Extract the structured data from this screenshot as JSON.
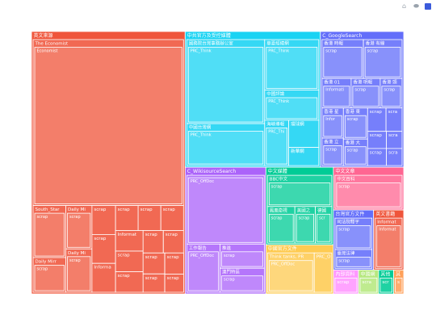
{
  "modebar": {
    "icons": [
      {
        "name": "camera-icon",
        "glyph": "⌂"
      },
      {
        "name": "zoom-icon",
        "glyph": "⬬"
      },
      {
        "name": "plotly-logo-icon",
        "glyph": ""
      }
    ]
  },
  "chart_data": {
    "type": "treemap",
    "title": "",
    "groups": [
      {
        "label": "英文來源",
        "color": "#ef553b",
        "children": [
          {
            "label": "The Economist",
            "value": 44,
            "children": [
              {
                "label": "Economist",
                "value": 44
              }
            ]
          },
          {
            "label": "South_Star",
            "value": 3,
            "children": [
              {
                "label": "scrap",
                "value": 3
              }
            ]
          },
          {
            "label": "Daily Mirror",
            "value": 2,
            "children": [
              {
                "label": "scrap",
                "value": 2
              }
            ]
          },
          {
            "label": "Daily Mirror",
            "value": 2,
            "children": [
              {
                "label": "scrap",
                "value": 2
              }
            ]
          },
          {
            "label": "Daily Mirror",
            "value": 2,
            "children": [
              {
                "label": "scrap",
                "value": 2
              }
            ]
          },
          {
            "label": "scrap",
            "value": 1.2
          },
          {
            "label": "scrap",
            "value": 1.2
          },
          {
            "label": "Informative",
            "value": 1.2
          },
          {
            "label": "scrap",
            "value": 1
          },
          {
            "label": "scrap",
            "value": 1
          },
          {
            "label": "scrap",
            "value": 1
          },
          {
            "label": "Informative",
            "value": 1
          },
          {
            "label": "scrap",
            "value": 1
          },
          {
            "label": "scrap",
            "value": 1
          },
          {
            "label": "scrap",
            "value": 0.8
          },
          {
            "label": "scrap",
            "value": 0.8
          },
          {
            "label": "scrap",
            "value": 0.8
          },
          {
            "label": "scrap",
            "value": 0.7
          },
          {
            "label": "scrap",
            "value": 0.7
          },
          {
            "label": "scrap",
            "value": 0.6
          }
        ]
      },
      {
        "label": "中共官方及受控媒體",
        "color": "#19d3f3",
        "children": [
          {
            "label": "國務院台灣事務辦公室",
            "value": 12,
            "children": [
              {
                "label": "PRC_Think",
                "value": 12
              }
            ]
          },
          {
            "label": "中國台灣網",
            "value": 6,
            "children": [
              {
                "label": "PRC_Think",
                "value": 6
              }
            ]
          },
          {
            "label": "華夏經緯網",
            "value": 5,
            "children": [
              {
                "label": "PRC_Think",
                "value": 5
              }
            ]
          },
          {
            "label": "中國評論",
            "value": 3,
            "children": [
              {
                "label": "PRC_Think",
                "value": 3
              }
            ]
          },
          {
            "label": "海峽導報",
            "value": 2,
            "children": [
              {
                "label": "PRC_Think",
                "value": 2
              }
            ]
          },
          {
            "label": "環球網",
            "value": 1.5
          },
          {
            "label": "新華網",
            "value": 1
          }
        ]
      },
      {
        "label": "C_GoogleSearch",
        "color": "#636efa",
        "children": [
          {
            "label": "香港 時報",
            "value": 3,
            "children": [
              {
                "label": "scrap",
                "value": 3
              }
            ]
          },
          {
            "label": "香港 有線",
            "value": 2.8,
            "children": [
              {
                "label": "scrap",
                "value": 2.8
              }
            ]
          },
          {
            "label": "香港 01",
            "value": 1.6,
            "children": [
              {
                "label": "Informative",
                "value": 1.6
              }
            ]
          },
          {
            "label": "香港 明報",
            "value": 1.6,
            "children": [
              {
                "label": "scrap",
                "value": 1.6
              }
            ]
          },
          {
            "label": "香港 頭條",
            "value": 1.2,
            "children": [
              {
                "label": "scrap",
                "value": 1.2
              }
            ]
          },
          {
            "label": "香港 星島",
            "value": 1.2,
            "children": [
              {
                "label": "Informative",
                "value": 1.2
              }
            ]
          },
          {
            "label": "香港 立場",
            "value": 1.1,
            "children": [
              {
                "label": "scrap",
                "value": 1.1
              }
            ]
          },
          {
            "label": "香港 東方",
            "value": 1.4,
            "children": [
              {
                "label": "scrap",
                "value": 1.4
              }
            ]
          },
          {
            "label": "香港 大公",
            "value": 1.2,
            "children": [
              {
                "label": "scrap",
                "value": 1.2
              }
            ]
          },
          {
            "label": "scrap",
            "value": 0.8
          },
          {
            "label": "scrap",
            "value": 0.7
          },
          {
            "label": "scrap",
            "value": 0.6
          },
          {
            "label": "scrap",
            "value": 0.6
          },
          {
            "label": "scrap",
            "value": 0.5
          },
          {
            "label": "scrap",
            "value": 0.5
          }
        ]
      },
      {
        "label": "C_WikisourceSearch",
        "color": "#ab63fa",
        "children": [
          {
            "label": "",
            "value": 10,
            "children": [
              {
                "label": "PRC_OffDoc",
                "value": 10
              }
            ]
          },
          {
            "label": "工作報告",
            "value": 3,
            "children": [
              {
                "label": "PRC_OffDoc",
                "value": 3
              }
            ]
          },
          {
            "label": "推進",
            "value": 2,
            "children": [
              {
                "label": "scrap",
                "value": 2
              }
            ]
          },
          {
            "label": "澳門特區",
            "value": 2,
            "children": [
              {
                "label": "scrap",
                "value": 2
              }
            ]
          }
        ]
      },
      {
        "label": "中文媒體",
        "color": "#00cc96",
        "children": [
          {
            "label": "BBC中文",
            "value": 4,
            "children": [
              {
                "label": "scrap",
                "value": 4
              }
            ]
          },
          {
            "label": "鳳凰衛視",
            "value": 2,
            "children": [
              {
                "label": "scrap",
                "value": 2
              }
            ]
          },
          {
            "label": "美國之音",
            "value": 1.5,
            "children": [
              {
                "label": "scrap",
                "value": 1.5
              }
            ]
          },
          {
            "label": "德國之聲",
            "value": 1.2,
            "children": [
              {
                "label": "scrap",
                "value": 1.2
              }
            ]
          }
        ]
      },
      {
        "label": "中國官方文件",
        "color": "#fecb52",
        "children": [
          {
            "label": "Think tanks, PRC",
            "value": 4,
            "children": [
              {
                "label": "PRC_OffDoc",
                "value": 4
              }
            ]
          },
          {
            "label": "PRC_OffDoc",
            "value": 1.5
          }
        ]
      },
      {
        "label": "中文文章",
        "color": "#ff6692",
        "children": [
          {
            "label": "中文百科",
            "value": 5,
            "children": [
              {
                "label": "scrap",
                "value": 5
              }
            ]
          }
        ]
      },
      {
        "label": "台灣官方文件",
        "color": "#636efa",
        "children": [
          {
            "label": "司法院釋字",
            "value": 2.5,
            "children": [
              {
                "label": "scrap",
                "value": 2.5
              }
            ]
          },
          {
            "label": "臺灣法律",
            "value": 1.5,
            "children": [
              {
                "label": "scrap",
                "value": 1.5
              }
            ]
          }
        ]
      },
      {
        "label": "英文書籍",
        "color": "#ef553b",
        "children": [
          {
            "label": "Informative",
            "value": 3,
            "children": [
              {
                "label": "Informative",
                "value": 3
              }
            ]
          }
        ]
      },
      {
        "label": "內部資料",
        "color": "#ff97ff",
        "children": [
          {
            "label": "scrap",
            "value": 1
          }
        ]
      },
      {
        "label": "中國網絡",
        "color": "#b6e880",
        "children": [
          {
            "label": "scrap",
            "value": 0.8
          }
        ]
      },
      {
        "label": "其他",
        "color": "#00cc96",
        "children": [
          {
            "label": "scrap",
            "value": 0.6
          }
        ]
      },
      {
        "label": "其他",
        "color": "#ffa15a",
        "children": [
          {
            "label": "scrap",
            "value": 0.4
          }
        ]
      }
    ]
  }
}
